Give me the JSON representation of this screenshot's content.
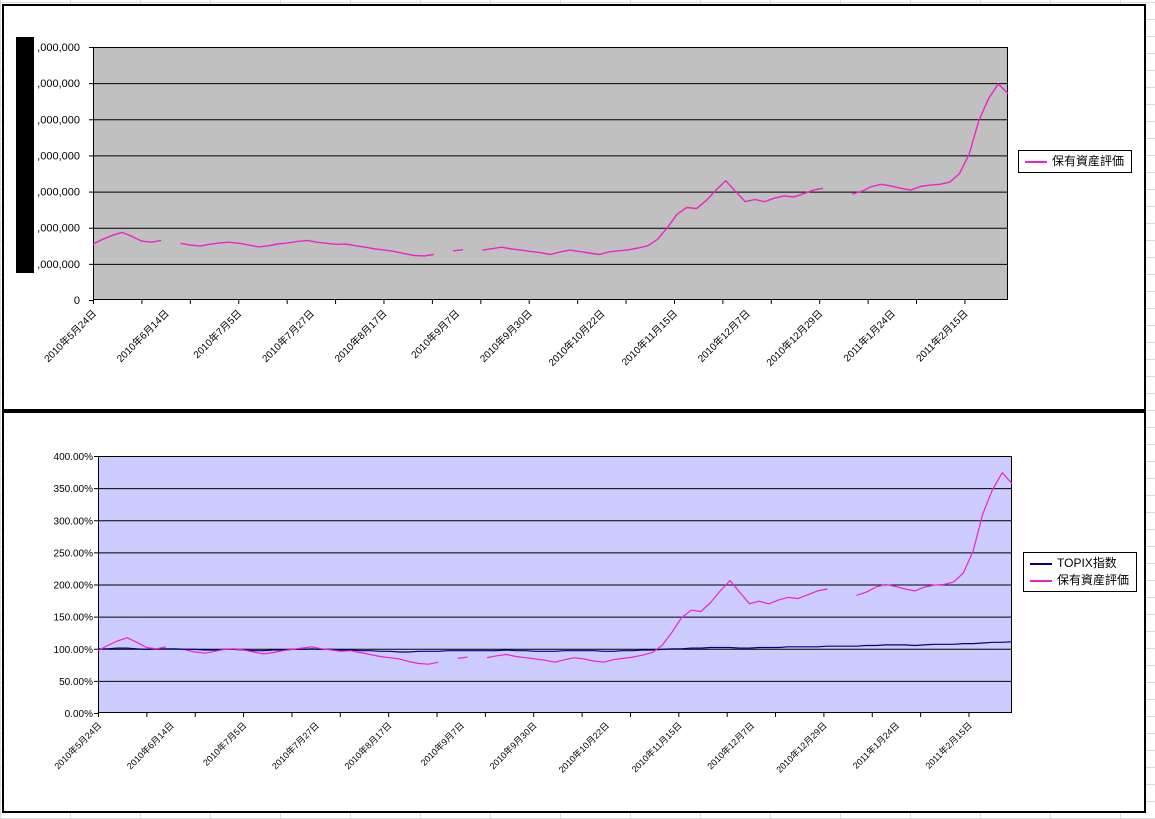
{
  "sheet": {
    "background_color": "#ffffff",
    "gridline_color": "#dcdcdc"
  },
  "chart_data": [
    {
      "type": "line",
      "title": "",
      "plot_bg": "#c0c0c0",
      "grid": true,
      "legend_position": "right",
      "x_tick_labels": [
        "2010年5月24日",
        "2010年6月14日",
        "2010年7月5日",
        "2010年7月27日",
        "2010年8月17日",
        "2010年9月7日",
        "2010年9月30日",
        "2010年10月22日",
        "2010年11月15日",
        "2010年12月7日",
        "2010年12月29日",
        "2011年1月24日",
        "2011年2月15日"
      ],
      "x_label_interval_days": 15,
      "x_tick_interval_days": 10,
      "x_total_days": 190,
      "ylim": [
        0,
        7
      ],
      "y_step": 1,
      "y_axis_redacted": true,
      "y_tick_labels_bottom_to_top": [
        "0",
        ",000,000",
        ",000,000",
        ",000,000",
        ",000,000",
        ",000,000",
        ",000,000",
        ",000,000"
      ],
      "y_note": "leading digits of y-axis labels hidden by a black redaction bar; one gridline step = x,000,000",
      "series": [
        {
          "name": "保有資産評価",
          "key": "asset-valuation-line",
          "color": "#ee22cc",
          "width": 1.4,
          "values": [
            1.55,
            1.68,
            1.79,
            1.87,
            1.76,
            1.63,
            1.6,
            1.65,
            null,
            1.57,
            1.52,
            1.49,
            1.54,
            1.58,
            1.6,
            1.57,
            1.52,
            1.47,
            1.5,
            1.55,
            1.58,
            1.62,
            1.65,
            1.6,
            1.57,
            1.54,
            1.55,
            1.5,
            1.46,
            1.41,
            1.38,
            1.34,
            1.28,
            1.23,
            1.22,
            1.26,
            null,
            1.36,
            1.39,
            null,
            1.38,
            1.42,
            1.46,
            1.41,
            1.38,
            1.34,
            1.31,
            1.26,
            1.33,
            1.38,
            1.34,
            1.3,
            1.26,
            1.33,
            1.36,
            1.39,
            1.44,
            1.5,
            1.68,
            2.0,
            2.37,
            2.56,
            2.53,
            2.75,
            3.04,
            3.3,
            3.01,
            2.72,
            2.78,
            2.72,
            2.82,
            2.88,
            2.85,
            2.94,
            3.04,
            3.09,
            null,
            null,
            2.93,
            3.01,
            3.14,
            3.2,
            3.15,
            3.09,
            3.04,
            3.14,
            3.18,
            3.2,
            3.26,
            3.49,
            4.03,
            4.96,
            5.57,
            5.98,
            5.71
          ]
        }
      ]
    },
    {
      "type": "line",
      "title": "",
      "plot_bg": "#ccccff",
      "grid": true,
      "legend_position": "right",
      "x_tick_labels": [
        "2010年5月24日",
        "2010年6月14日",
        "2010年7月5日",
        "2010年7月27日",
        "2010年8月17日",
        "2010年9月7日",
        "2010年9月30日",
        "2010年10月22日",
        "2010年11月15日",
        "2010年12月7日",
        "2010年12月29日",
        "2011年1月24日",
        "2011年2月15日"
      ],
      "x_label_interval_days": 15,
      "x_tick_interval_days": 10,
      "x_total_days": 190,
      "ylim": [
        0,
        400
      ],
      "y_step": 50,
      "y_axis_redacted": false,
      "y_tick_labels_bottom_to_top": [
        "0.00%",
        "50.00%",
        "100.00%",
        "150.00%",
        "200.00%",
        "250.00%",
        "300.00%",
        "350.00%",
        "400.00%"
      ],
      "series": [
        {
          "name": "TOPIX指数",
          "key": "topix-index-line",
          "color": "#000080",
          "width": 1.2,
          "values": [
            100,
            100,
            101,
            101,
            100,
            99,
            100,
            100,
            100,
            99,
            99,
            98,
            98,
            99,
            99,
            98,
            97,
            97,
            98,
            98,
            99,
            99,
            100,
            99,
            99,
            98,
            98,
            97,
            97,
            96,
            96,
            95,
            95,
            96,
            96,
            96,
            97,
            97,
            97,
            97,
            97,
            97,
            98,
            97,
            97,
            96,
            96,
            96,
            97,
            97,
            97,
            97,
            96,
            96,
            97,
            97,
            98,
            98,
            99,
            100,
            100,
            101,
            101,
            102,
            102,
            102,
            101,
            101,
            102,
            102,
            102,
            103,
            103,
            103,
            103,
            104,
            104,
            104,
            104,
            105,
            105,
            106,
            106,
            106,
            105,
            106,
            107,
            107,
            107,
            108,
            108,
            109,
            110,
            110,
            111
          ]
        },
        {
          "name": "保有資産評価",
          "key": "asset-valuation-line",
          "color": "#ee22cc",
          "width": 1.2,
          "values": [
            97,
            105,
            112,
            117,
            110,
            102,
            100,
            103,
            null,
            98,
            95,
            93,
            96,
            99,
            100,
            98,
            95,
            92,
            94,
            97,
            99,
            101,
            103,
            100,
            98,
            96,
            97,
            94,
            91,
            88,
            86,
            84,
            80,
            77,
            76,
            79,
            null,
            85,
            87,
            null,
            86,
            89,
            91,
            88,
            86,
            84,
            82,
            79,
            83,
            86,
            84,
            81,
            79,
            83,
            85,
            87,
            90,
            94,
            105,
            125,
            148,
            160,
            158,
            172,
            190,
            206,
            188,
            170,
            174,
            170,
            176,
            180,
            178,
            184,
            190,
            193,
            null,
            null,
            183,
            188,
            196,
            200,
            197,
            193,
            190,
            196,
            199,
            200,
            204,
            218,
            252,
            310,
            348,
            374,
            357
          ]
        }
      ]
    }
  ]
}
